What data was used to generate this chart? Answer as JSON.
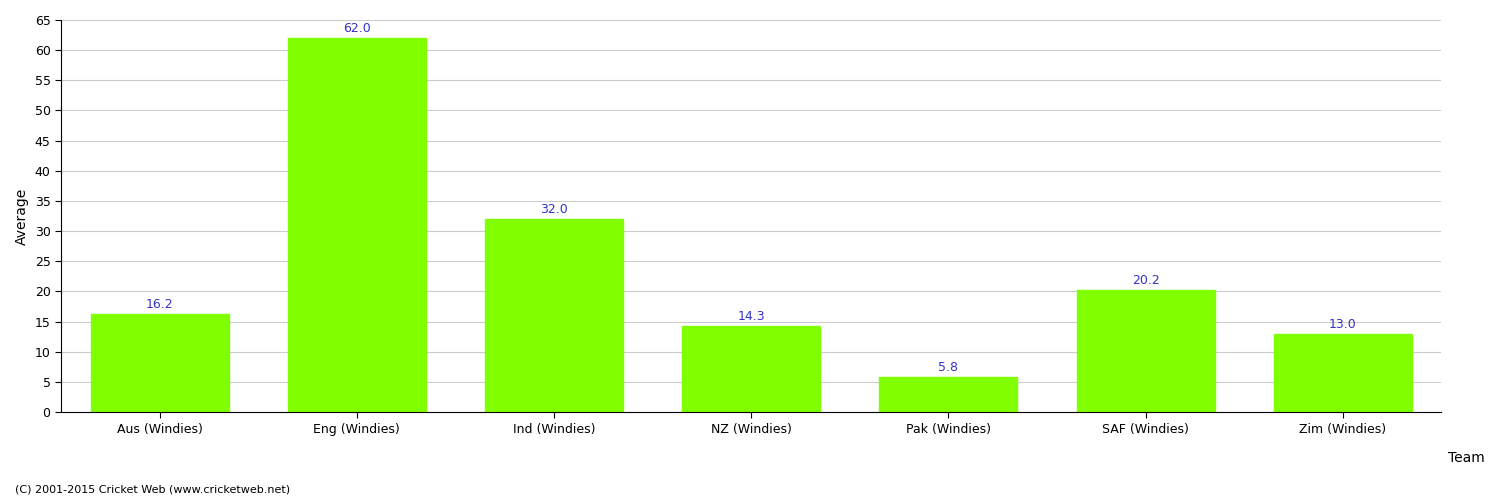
{
  "categories": [
    "Aus (Windies)",
    "Eng (Windies)",
    "Ind (Windies)",
    "NZ (Windies)",
    "Pak (Windies)",
    "SAF (Windies)",
    "Zim (Windies)"
  ],
  "values": [
    16.2,
    62.0,
    32.0,
    14.3,
    5.8,
    20.2,
    13.0
  ],
  "bar_color": "#7fff00",
  "bar_edge_color": "#7fff00",
  "value_label_color": "#3333cc",
  "ylabel": "Average",
  "xlabel": "Team",
  "ylim": [
    0,
    65
  ],
  "yticks": [
    0,
    5,
    10,
    15,
    20,
    25,
    30,
    35,
    40,
    45,
    50,
    55,
    60,
    65
  ],
  "grid_color": "#cccccc",
  "background_color": "#ffffff",
  "footer": "(C) 2001-2015 Cricket Web (www.cricketweb.net)",
  "value_fontsize": 9,
  "axis_label_fontsize": 10,
  "tick_fontsize": 9,
  "footer_fontsize": 8,
  "bar_width": 0.7
}
